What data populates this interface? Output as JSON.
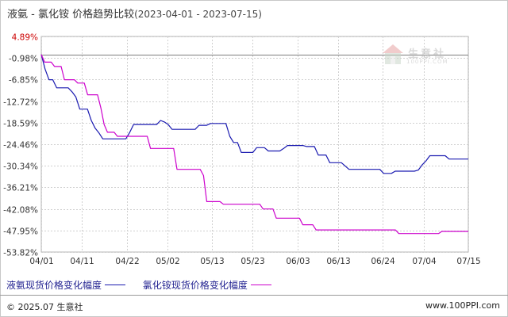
{
  "header": {
    "title": "液氨 - 氯化铵 价格趋势比较",
    "date_range": "(2023-04-01 - 2023-07-15)"
  },
  "watermark": {
    "text": "生意社",
    "url": "100PPI.COM"
  },
  "footer": {
    "copyright": "© 2025.07 生意社",
    "url": "www.100PPI.com"
  },
  "chart_data": {
    "type": "line",
    "title": "液氨 - 氯化铵 价格趋势比较",
    "y_ticks": [
      "4.89%",
      "-0.98%",
      "-6.85%",
      "-12.72%",
      "-18.59%",
      "-24.46%",
      "-30.34%",
      "-36.21%",
      "-42.08%",
      "-47.95%",
      "-53.82%"
    ],
    "y_tick_values": [
      4.89,
      -0.98,
      -6.85,
      -12.72,
      -18.59,
      -24.46,
      -30.34,
      -36.21,
      -42.08,
      -47.95,
      -53.82
    ],
    "x_ticks": [
      "04/01",
      "04/11",
      "04/22",
      "05/02",
      "05/13",
      "05/23",
      "06/03",
      "06/13",
      "06/24",
      "07/04",
      "07/15"
    ],
    "x_tick_days": [
      0,
      10,
      21,
      31,
      42,
      52,
      63,
      73,
      84,
      94,
      105
    ],
    "ylim": [
      -53.82,
      4.89
    ],
    "xlim_days": [
      0,
      105
    ],
    "grid": true,
    "legend_position": "bottom-left",
    "series": [
      {
        "name": "液氨现货价格变化幅度",
        "color": "#1a1ab0",
        "points": [
          [
            0,
            0
          ],
          [
            1,
            -4
          ],
          [
            2,
            -6.9
          ],
          [
            3,
            -6.9
          ],
          [
            4,
            -9.1
          ],
          [
            7,
            -9.1
          ],
          [
            8,
            -10.2
          ],
          [
            9,
            -11.6
          ],
          [
            10,
            -14.9
          ],
          [
            12,
            -14.9
          ],
          [
            13,
            -18.0
          ],
          [
            14,
            -20.1
          ],
          [
            15,
            -21.4
          ],
          [
            16,
            -23.0
          ],
          [
            22,
            -23.0
          ],
          [
            23,
            -21.2
          ],
          [
            24,
            -19.1
          ],
          [
            30,
            -19.1
          ],
          [
            31,
            -18.0
          ],
          [
            32,
            -18.4
          ],
          [
            33,
            -19.1
          ],
          [
            34,
            -20.4
          ],
          [
            40,
            -20.4
          ],
          [
            41,
            -19.3
          ],
          [
            43,
            -19.3
          ],
          [
            44,
            -18.8
          ],
          [
            48,
            -18.8
          ],
          [
            49,
            -22.3
          ],
          [
            50,
            -24.0
          ],
          [
            51,
            -24.0
          ],
          [
            52,
            -26.7
          ],
          [
            55,
            -26.7
          ],
          [
            56,
            -25.4
          ],
          [
            58,
            -25.4
          ],
          [
            59,
            -26.3
          ],
          [
            62,
            -26.3
          ],
          [
            63,
            -25.6
          ],
          [
            64,
            -24.8
          ],
          [
            68,
            -24.8
          ],
          [
            69,
            -25.1
          ],
          [
            71,
            -25.1
          ],
          [
            72,
            -27.4
          ],
          [
            74,
            -27.4
          ],
          [
            75,
            -29.5
          ],
          [
            78,
            -29.5
          ],
          [
            80,
            -31.3
          ],
          [
            88,
            -31.3
          ],
          [
            89,
            -32.4
          ],
          [
            91,
            -32.4
          ],
          [
            92,
            -31.8
          ],
          [
            97,
            -31.8
          ],
          [
            98,
            -31.5
          ],
          [
            99,
            -30.1
          ],
          [
            100,
            -29.0
          ],
          [
            101,
            -27.6
          ],
          [
            105,
            -27.6
          ],
          [
            106,
            -28.5
          ],
          [
            111,
            -28.5
          ]
        ]
      },
      {
        "name": "氯化铵现货价格变化幅度",
        "color": "#cc00cc",
        "points": [
          [
            0,
            0
          ],
          [
            1,
            -2.1
          ],
          [
            3,
            -2.1
          ],
          [
            4,
            -3.3
          ],
          [
            6,
            -3.3
          ],
          [
            7,
            -6.9
          ],
          [
            10,
            -6.9
          ],
          [
            11,
            -7.8
          ],
          [
            13,
            -7.8
          ],
          [
            14,
            -11.0
          ],
          [
            17,
            -11.0
          ],
          [
            18,
            -14.6
          ],
          [
            19,
            -19.1
          ],
          [
            20,
            -21.2
          ],
          [
            22,
            -21.2
          ],
          [
            23,
            -22.3
          ],
          [
            32,
            -22.3
          ],
          [
            33,
            -25.6
          ],
          [
            40,
            -25.6
          ],
          [
            41,
            -31.3
          ],
          [
            48,
            -31.3
          ],
          [
            49,
            -33.0
          ],
          [
            50,
            -40.1
          ],
          [
            54,
            -40.1
          ],
          [
            55,
            -40.8
          ],
          [
            66,
            -40.8
          ],
          [
            67,
            -42.1
          ],
          [
            70,
            -42.1
          ],
          [
            71,
            -44.6
          ],
          [
            78,
            -44.6
          ],
          [
            79,
            -46.4
          ],
          [
            82,
            -46.4
          ],
          [
            83,
            -47.8
          ],
          [
            107,
            -47.8
          ],
          [
            108,
            -48.8
          ],
          [
            120,
            -48.8
          ],
          [
            121,
            -48.2
          ],
          [
            129,
            -48.2
          ]
        ]
      }
    ]
  }
}
